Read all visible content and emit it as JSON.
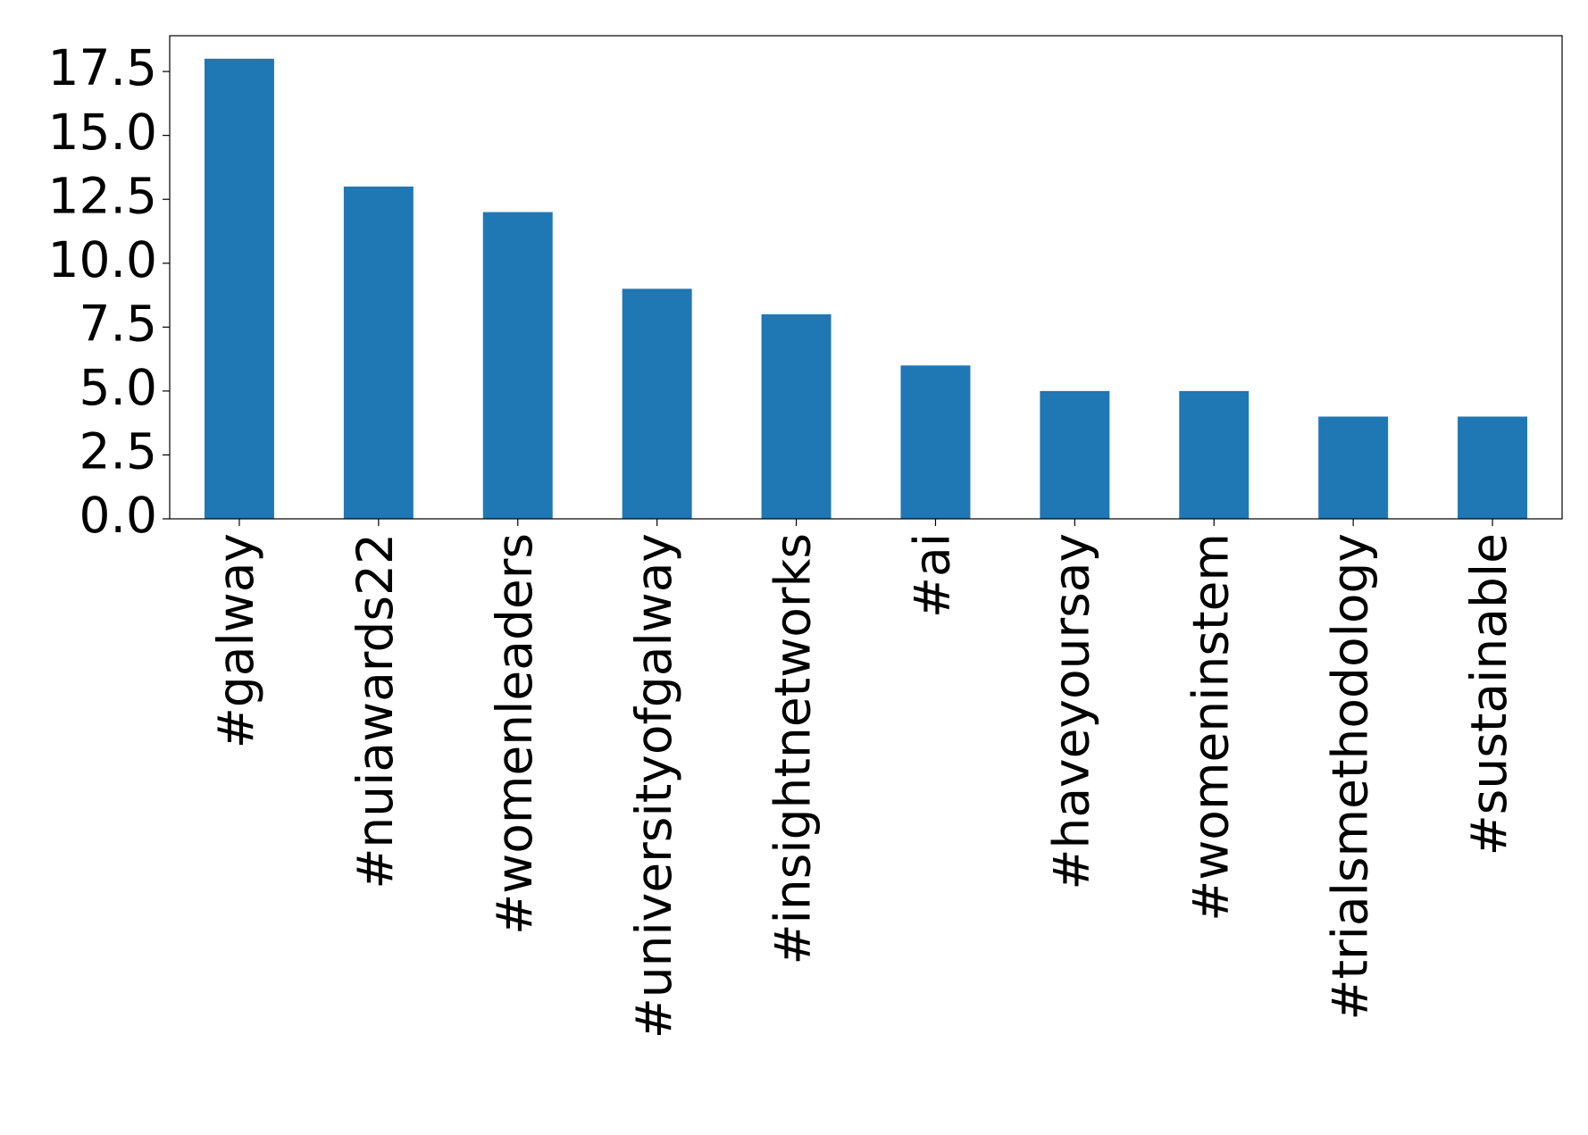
{
  "chart_data": {
    "type": "bar",
    "categories": [
      "#galway",
      "#nuiawards22",
      "#womenleaders",
      "#universityofgalway",
      "#insightnetworks",
      "#ai",
      "#haveyoursay",
      "#womeninstem",
      "#trialsmethodology",
      "#sustainable"
    ],
    "values": [
      18,
      13,
      12,
      9,
      8,
      6,
      5,
      5,
      4,
      4
    ],
    "color": "#1f77b4",
    "ylim": [
      0,
      18.9
    ],
    "yticks": [
      {
        "value": 0,
        "label": "0.0"
      },
      2.5,
      {
        "value": 5,
        "label": "5.0"
      },
      7.5,
      {
        "value": 10,
        "label": "10.0"
      },
      12.5,
      {
        "value": 15,
        "label": "15.0"
      },
      17.5
    ],
    "grid": false
  }
}
